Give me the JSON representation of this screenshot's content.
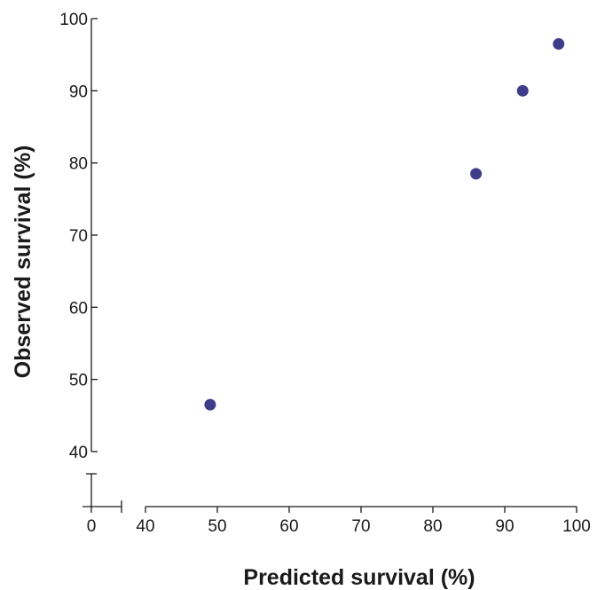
{
  "chart_data": {
    "type": "scatter",
    "xlabel": "Predicted survival (%)",
    "ylabel": "Observed survival (%)",
    "xlim": [
      40,
      100
    ],
    "ylim": [
      40,
      100
    ],
    "x_ticks": [
      40,
      50,
      60,
      70,
      80,
      90,
      100
    ],
    "y_ticks": [
      40,
      50,
      60,
      70,
      80,
      90,
      100
    ],
    "x_break_tick": 0,
    "axis_breaks": true,
    "grid": false,
    "legend": "none",
    "marker_color": "#3d3d8a",
    "series": [
      {
        "x": [
          49,
          86,
          92.5,
          97.5
        ],
        "y": [
          46.5,
          78.5,
          90,
          96.5
        ]
      }
    ]
  }
}
